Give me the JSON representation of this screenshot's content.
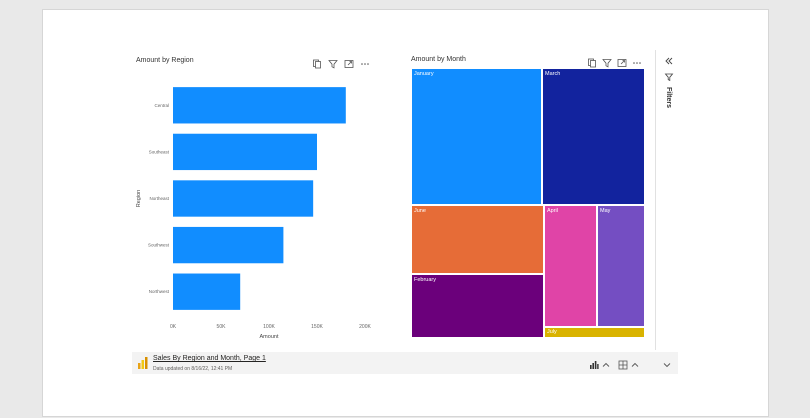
{
  "report": {
    "page_title": "Sales By Region and Month, Page 1",
    "updated_text": "Data updated on 8/16/22, 12:41 PM",
    "filters_label": "Filters"
  },
  "colors": {
    "bar": "#118dff",
    "january": "#118dff",
    "march": "#12239e",
    "june": "#e66c37",
    "february": "#6b007b",
    "april": "#e044a7",
    "may": "#744ec2",
    "july": "#d9b300"
  },
  "bar_chart": {
    "title": "Amount by Region",
    "xlabel": "Amount",
    "ylabel": "Region",
    "icons": [
      "copy-icon",
      "filter-icon",
      "focus-mode-icon",
      "more-options-icon"
    ]
  },
  "treemap": {
    "title": "Amount by Month",
    "icons": [
      "copy-icon",
      "filter-icon",
      "focus-mode-icon",
      "more-options-icon"
    ]
  },
  "chart_data": [
    {
      "type": "bar",
      "orientation": "horizontal",
      "title": "Amount by Region",
      "xlabel": "Amount",
      "ylabel": "Region",
      "categories": [
        "Central",
        "Southeast",
        "Northeast",
        "Southwest",
        "Northwest"
      ],
      "values": [
        180000,
        150000,
        146000,
        115000,
        70000
      ],
      "xlim": [
        0,
        200000
      ],
      "xticks": [
        0,
        50000,
        100000,
        150000,
        200000
      ],
      "xtick_labels": [
        "0K",
        "50K",
        "100K",
        "150K",
        "200K"
      ],
      "grid": false,
      "legend": "none"
    },
    {
      "type": "treemap",
      "title": "Amount by Month",
      "categories": [
        "January",
        "March",
        "June",
        "February",
        "April",
        "May",
        "July"
      ],
      "values": [
        165000,
        175000,
        95000,
        85000,
        60000,
        65000,
        15000
      ]
    }
  ]
}
